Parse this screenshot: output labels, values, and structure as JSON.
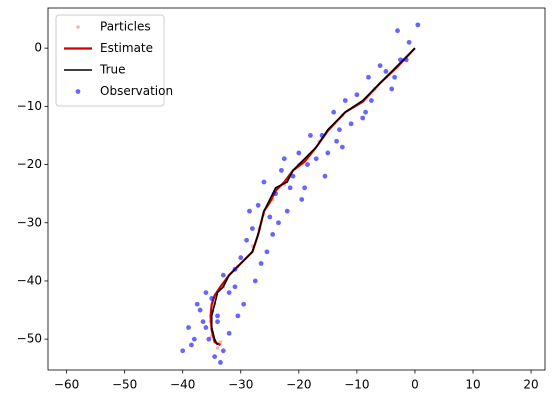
{
  "chart_data": {
    "type": "scatter",
    "xlim": [
      -63.2,
      22.4
    ],
    "ylim": [
      -55.3,
      6.9
    ],
    "xticks": [
      {
        "value": -60,
        "label": "−60"
      },
      {
        "value": -50,
        "label": "−50"
      },
      {
        "value": -40,
        "label": "−40"
      },
      {
        "value": -30,
        "label": "−30"
      },
      {
        "value": -20,
        "label": "−20"
      },
      {
        "value": -10,
        "label": "−10"
      },
      0,
      10,
      20
    ],
    "yticks": [
      {
        "value": -50,
        "label": "−50"
      },
      {
        "value": -40,
        "label": "−40"
      },
      {
        "value": -30,
        "label": "−30"
      },
      {
        "value": -20,
        "label": "−20"
      },
      {
        "value": -10,
        "label": "−10"
      },
      0
    ],
    "legend": "upper left",
    "series": [
      {
        "name": "Particles",
        "kind": "scatter",
        "color": "#f2a0a0",
        "x": [
          -2,
          -7,
          -12.5,
          -16.5,
          -20,
          -22.5,
          -24.5,
          -26,
          -26.8,
          -28,
          -30.5,
          -33,
          -34.5,
          -35.2,
          -35,
          -34,
          -33.5
        ],
        "values": [
          -2,
          -7,
          -11.5,
          -16,
          -20,
          -23.5,
          -26,
          -28.5,
          -31,
          -34,
          -37.5,
          -41,
          -44,
          -47,
          -49.5,
          -51.5,
          -50.5
        ]
      },
      {
        "name": "Estimate",
        "kind": "line",
        "color": "#cc0000",
        "x": [
          0,
          -3,
          -6,
          -9,
          -12,
          -15,
          -17,
          -19,
          -21,
          -22.5,
          -24,
          -25,
          -26,
          -26.5,
          -27,
          -28,
          -30,
          -32,
          -33.5,
          -34.5,
          -35,
          -35.2,
          -35,
          -34.5,
          -33.5
        ],
        "values": [
          0,
          -3.2,
          -6,
          -9.2,
          -11,
          -14.2,
          -17,
          -19.5,
          -21,
          -23,
          -24.5,
          -26.5,
          -28,
          -30,
          -32,
          -35,
          -37,
          -39,
          -41,
          -42.5,
          -44,
          -46,
          -48.5,
          -50.5,
          -51
        ]
      },
      {
        "name": "True",
        "kind": "line",
        "color": "#000000",
        "x": [
          0,
          -3,
          -6,
          -9,
          -12,
          -15,
          -17,
          -19,
          -21,
          -22,
          -24,
          -25,
          -26,
          -26.5,
          -27,
          -28,
          -30,
          -32,
          -33,
          -34,
          -34.5,
          -35,
          -35,
          -34.5,
          -34
        ],
        "values": [
          0,
          -3,
          -6,
          -9,
          -11,
          -14,
          -17,
          -19,
          -21,
          -23,
          -24,
          -26,
          -28,
          -30,
          -32,
          -35,
          -37,
          -39,
          -41,
          -42,
          -44,
          -46,
          -48,
          -50,
          -51
        ]
      },
      {
        "name": "Observation",
        "kind": "scatter",
        "color": "#0000ff",
        "x": [
          0.5,
          -1,
          -2.5,
          -3,
          -5,
          -4,
          -6,
          -7.5,
          -8,
          -9,
          -10,
          -11,
          -12,
          -13,
          -12.5,
          -14,
          -15,
          -16,
          -15.5,
          -17,
          -18,
          -19,
          -20,
          -19.5,
          -21,
          -22,
          -23,
          -21.5,
          -24,
          -25,
          -26,
          -24.5,
          -27,
          -28,
          -25.5,
          -26.5,
          -29,
          -27.5,
          -30,
          -31,
          -32,
          -29.5,
          -33,
          -34,
          -35,
          -36,
          -37,
          -38,
          -33,
          -32,
          -34.5,
          -36.5,
          -38.5,
          -35.5,
          -31,
          -33.5,
          -37.5,
          -40,
          -39,
          -36,
          -34,
          -30.5,
          -1.5,
          -3.5,
          -8.5,
          -13.5,
          -18.5,
          -23.5,
          -28.5,
          -22.5
        ],
        "values": [
          4,
          1,
          -2,
          3,
          -4,
          -7,
          -3,
          -9,
          -5,
          -12,
          -8,
          -13,
          -9,
          -14,
          -17,
          -11,
          -18,
          -15,
          -22,
          -19,
          -15,
          -24,
          -18,
          -26,
          -22,
          -28,
          -21,
          -24,
          -25,
          -29,
          -23,
          -32,
          -27,
          -31,
          -35,
          -37,
          -33,
          -40,
          -36,
          -38,
          -42,
          -44,
          -39,
          -46,
          -43,
          -48,
          -45,
          -50,
          -52,
          -49,
          -53,
          -47,
          -51,
          -50,
          -41,
          -54,
          -44,
          -52,
          -48,
          -42,
          -47,
          -46,
          -2,
          -5,
          -11,
          -16,
          -20,
          -30,
          -28,
          -19
        ]
      }
    ]
  }
}
